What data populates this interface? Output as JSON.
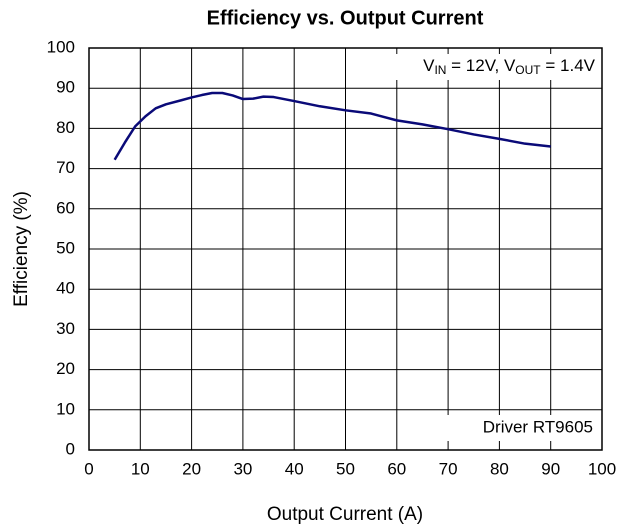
{
  "chart_data": {
    "type": "line",
    "title": "Efficiency vs. Output Current",
    "xlabel": "Output Current (A)",
    "ylabel": "Efficiency (%)",
    "annotation": {
      "parts": [
        "V",
        "IN",
        " = 12V, V",
        "OUT",
        " = 1.4V"
      ],
      "subscript": [
        false,
        true,
        false,
        true,
        false
      ]
    },
    "note": "Driver RT9605",
    "series": [
      {
        "name": "Efficiency",
        "color": "#0a0a78",
        "x": [
          5,
          7,
          9,
          11,
          13,
          15,
          18,
          20,
          22,
          24,
          26,
          28,
          30,
          32,
          34,
          36,
          40,
          45,
          50,
          55,
          57,
          60,
          65,
          70,
          75,
          80,
          85,
          90
        ],
        "values": [
          72.2,
          76.5,
          80.5,
          83,
          85,
          86,
          87,
          87.7,
          88.3,
          88.8,
          88.8,
          88.2,
          87.3,
          87.4,
          87.9,
          87.8,
          86.8,
          85.5,
          84.5,
          83.7,
          83,
          82,
          81,
          79.8,
          78.5,
          77.4,
          76.2,
          75.5
        ]
      }
    ],
    "xlim": [
      0,
      100
    ],
    "xticks": [
      0,
      10,
      20,
      30,
      40,
      50,
      60,
      70,
      80,
      90,
      100
    ],
    "ylim": [
      0,
      100
    ],
    "yticks": [
      0,
      10,
      20,
      30,
      40,
      50,
      60,
      70,
      80,
      90,
      100
    ],
    "grid": true
  }
}
